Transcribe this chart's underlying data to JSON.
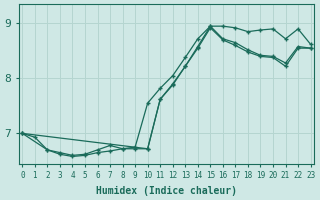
{
  "xlabel": "Humidex (Indice chaleur)",
  "bg_color": "#cfe8e5",
  "line_color": "#1a6b5a",
  "grid_color": "#b5d5d0",
  "xlim": [
    -0.3,
    23.3
  ],
  "ylim": [
    6.45,
    9.35
  ],
  "xticks": [
    0,
    1,
    2,
    3,
    4,
    5,
    6,
    7,
    8,
    9,
    10,
    11,
    12,
    13,
    14,
    15,
    16,
    17,
    18,
    19,
    20,
    21,
    22,
    23
  ],
  "yticks": [
    7,
    8,
    9
  ],
  "line1_x": [
    0,
    1,
    2,
    3,
    4,
    5,
    6,
    7,
    8,
    9,
    10,
    11,
    12,
    13,
    14,
    15,
    16,
    17,
    18,
    19,
    20,
    21,
    22,
    23
  ],
  "line1_y": [
    7.0,
    6.93,
    6.7,
    6.62,
    6.58,
    6.6,
    6.65,
    6.68,
    6.72,
    6.75,
    7.55,
    7.82,
    8.05,
    8.38,
    8.72,
    8.95,
    8.95,
    8.92,
    8.85,
    8.88,
    8.9,
    8.72,
    8.9,
    8.62
  ],
  "line2_x": [
    0,
    2,
    3,
    4,
    5,
    6,
    7,
    8,
    9,
    10,
    11,
    12,
    13,
    14,
    15,
    16,
    17,
    18,
    19,
    20,
    21,
    22,
    23
  ],
  "line2_y": [
    7.0,
    6.7,
    6.65,
    6.6,
    6.62,
    6.7,
    6.78,
    6.72,
    6.72,
    6.72,
    7.62,
    7.88,
    8.22,
    8.58,
    8.95,
    8.72,
    8.65,
    8.52,
    8.42,
    8.4,
    8.28,
    8.58,
    8.55
  ],
  "line3_x": [
    0,
    10,
    11,
    12,
    13,
    14,
    15,
    16,
    17,
    18,
    19,
    20,
    21,
    22,
    23
  ],
  "line3_y": [
    7.0,
    6.72,
    7.62,
    7.9,
    8.22,
    8.55,
    8.92,
    8.7,
    8.6,
    8.48,
    8.4,
    8.38,
    8.22,
    8.55,
    8.55
  ]
}
